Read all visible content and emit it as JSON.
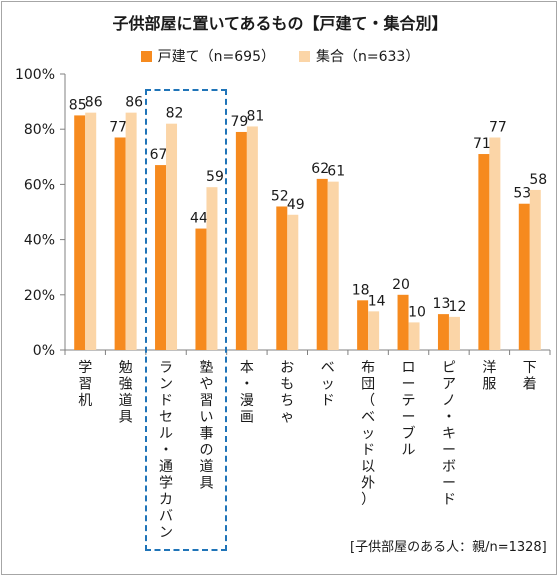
{
  "title": "子供部屋に置いてあるもの【戸建て・集合別】",
  "note": "[子供部屋のある人：親/n=1328]",
  "colors": {
    "series1": "#f68a1e",
    "series2": "#fbd5a7",
    "highlight": "#1f74b8"
  },
  "chart_data": {
    "type": "bar",
    "categories": [
      "学習机",
      "勉強道具",
      "ランドセル・通学カバン",
      "塾や習い事の道具",
      "本・漫画",
      "おもちゃ",
      "ベッド",
      "布団（ベッド以外）",
      "ローテーブル",
      "ピアノ・キーボード",
      "洋服",
      "下着"
    ],
    "series": [
      {
        "name": "戸建て（n=695）",
        "values": [
          85,
          77,
          67,
          44,
          79,
          52,
          62,
          18,
          20,
          13,
          71,
          53
        ]
      },
      {
        "name": "集合（n=633）",
        "values": [
          86,
          86,
          82,
          59,
          81,
          49,
          61,
          14,
          10,
          12,
          77,
          58
        ]
      }
    ],
    "yticks": [
      "0%",
      "20%",
      "40%",
      "60%",
      "80%",
      "100%"
    ],
    "ylim": [
      0,
      100
    ],
    "highlighted_categories": [
      2,
      3
    ],
    "legend_position": "top",
    "grid": false
  }
}
